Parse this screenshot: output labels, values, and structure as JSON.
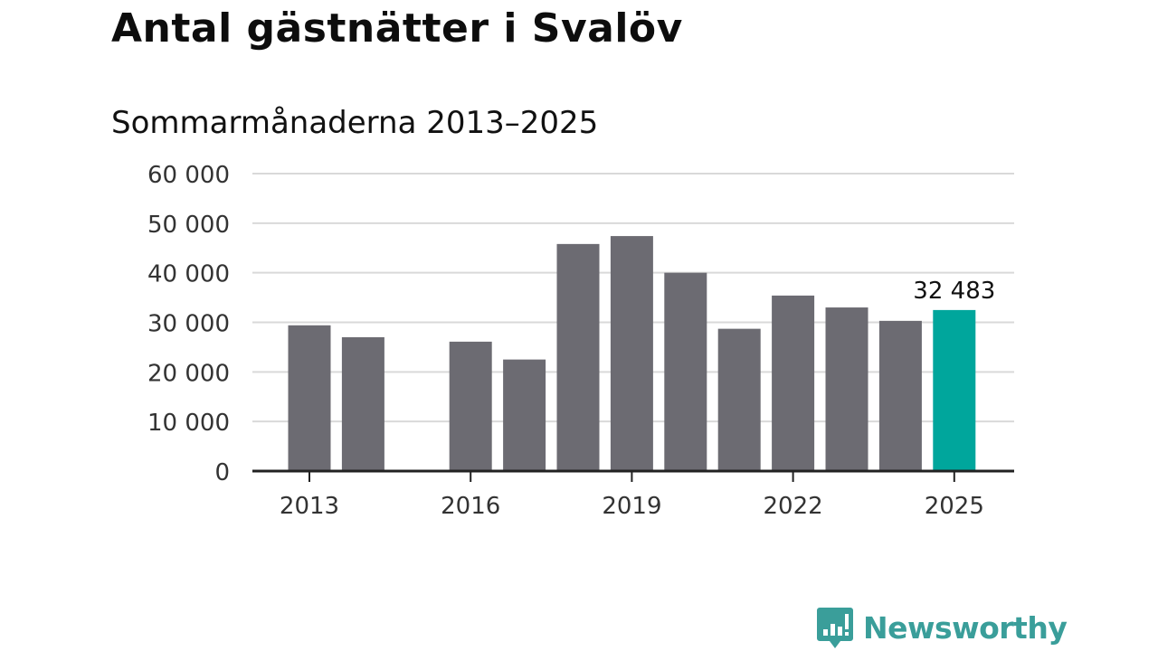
{
  "title": "Antal gästnätter i Svalöv",
  "subtitle": "Sommarmånaderna 2013–2025",
  "brand": {
    "name": "Newsworthy",
    "color": "#3a9e9a"
  },
  "colors": {
    "bar": "#6c6b72",
    "highlight": "#00a69c",
    "grid": "#d9d9d9",
    "axis": "#222222"
  },
  "chart_data": {
    "type": "bar",
    "title": "Antal gästnätter i Svalöv",
    "subtitle": "Sommarmånaderna 2013–2025",
    "categories": [
      "2013",
      "2014",
      "2015",
      "2016",
      "2017",
      "2018",
      "2019",
      "2020",
      "2021",
      "2022",
      "2023",
      "2024",
      "2025"
    ],
    "values": [
      29400,
      27000,
      null,
      26100,
      22500,
      45800,
      47400,
      40000,
      28700,
      35400,
      33000,
      30300,
      32483
    ],
    "highlight_index": 12,
    "data_label": "32 483",
    "x_tick_labels": [
      "2013",
      "2016",
      "2019",
      "2022",
      "2025"
    ],
    "y_tick_labels": [
      "0",
      "10 000",
      "20 000",
      "30 000",
      "40 000",
      "50 000",
      "60 000"
    ],
    "ylim": [
      0,
      60000
    ],
    "xlabel": "",
    "ylabel": "",
    "grid": true,
    "legend": "none"
  }
}
